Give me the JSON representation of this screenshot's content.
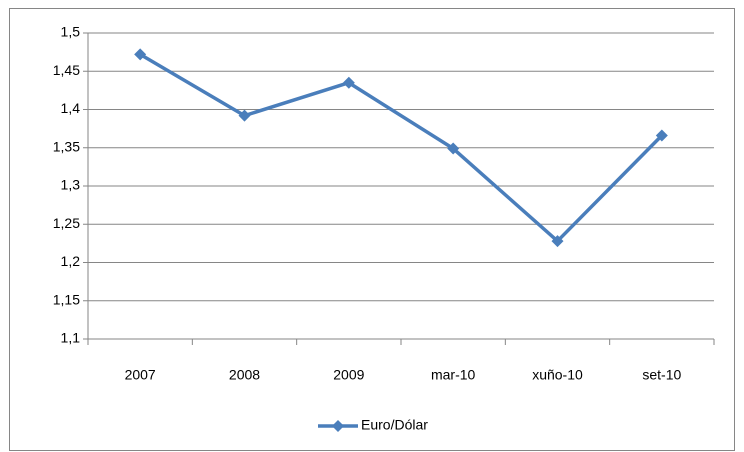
{
  "chart_data": {
    "type": "line",
    "categories": [
      "2007",
      "2008",
      "2009",
      "mar-10",
      "xuño-10",
      "set-10"
    ],
    "series": [
      {
        "name": "Euro/Dólar",
        "color": "#4a7ebb",
        "values": [
          1.472,
          1.392,
          1.435,
          1.349,
          1.228,
          1.366
        ]
      }
    ],
    "ylim": [
      1.1,
      1.5
    ],
    "yticks": [
      {
        "value": 1.1,
        "label": "1,1"
      },
      {
        "value": 1.15,
        "label": "1,15"
      },
      {
        "value": 1.2,
        "label": "1,2"
      },
      {
        "value": 1.25,
        "label": "1,25"
      },
      {
        "value": 1.3,
        "label": "1,3"
      },
      {
        "value": 1.35,
        "label": "1,35"
      },
      {
        "value": 1.4,
        "label": "1,4"
      },
      {
        "value": 1.45,
        "label": "1,45"
      },
      {
        "value": 1.5,
        "label": "1,5"
      }
    ],
    "grid": true,
    "legend": "bottom"
  }
}
